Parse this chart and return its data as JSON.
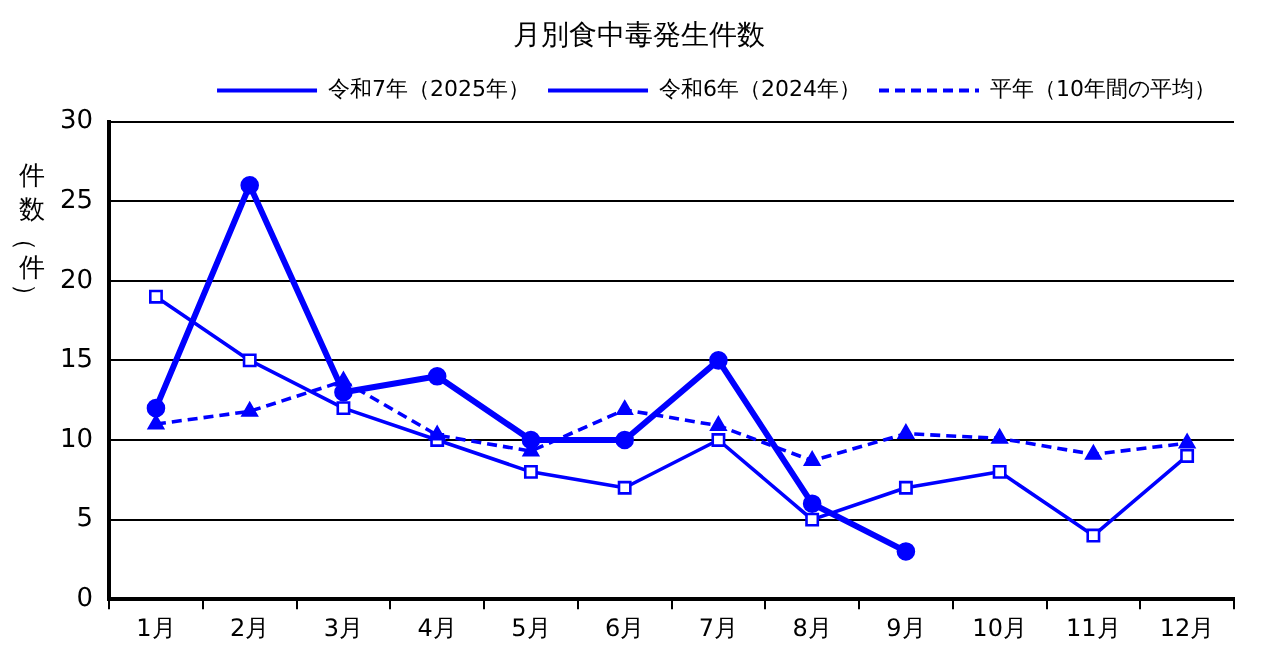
{
  "chart_data": {
    "type": "line",
    "title": "月別食中毒発生件数",
    "ylabel": "件数（件）",
    "categories": [
      "1月",
      "2月",
      "3月",
      "4月",
      "5月",
      "6月",
      "7月",
      "8月",
      "9月",
      "10月",
      "11月",
      "12月"
    ],
    "series": [
      {
        "name": "令和7年（2025年）",
        "color": "#0000ff",
        "marker": "circle",
        "line_style": "solid",
        "values": [
          12,
          26,
          13,
          14,
          10,
          10,
          15,
          6,
          3,
          null,
          null,
          null
        ]
      },
      {
        "name": "令和6年（2024年）",
        "color": "#0000ff",
        "marker": "square",
        "line_style": "solid",
        "values": [
          19,
          15,
          12,
          10,
          8,
          7,
          10,
          5,
          7,
          8,
          4,
          9
        ]
      },
      {
        "name": "平年（10年間の平均）",
        "color": "#0000ff",
        "marker": "triangle",
        "line_style": "dashed",
        "values": [
          11,
          11.8,
          13.7,
          10.3,
          9.3,
          11.9,
          10.9,
          8.7,
          10.4,
          10.1,
          9.1,
          9.8
        ]
      }
    ],
    "ylim": [
      0,
      30
    ],
    "yticks": [
      0,
      5,
      10,
      15,
      20,
      25,
      30
    ],
    "grid": "y",
    "legend": "top right"
  }
}
